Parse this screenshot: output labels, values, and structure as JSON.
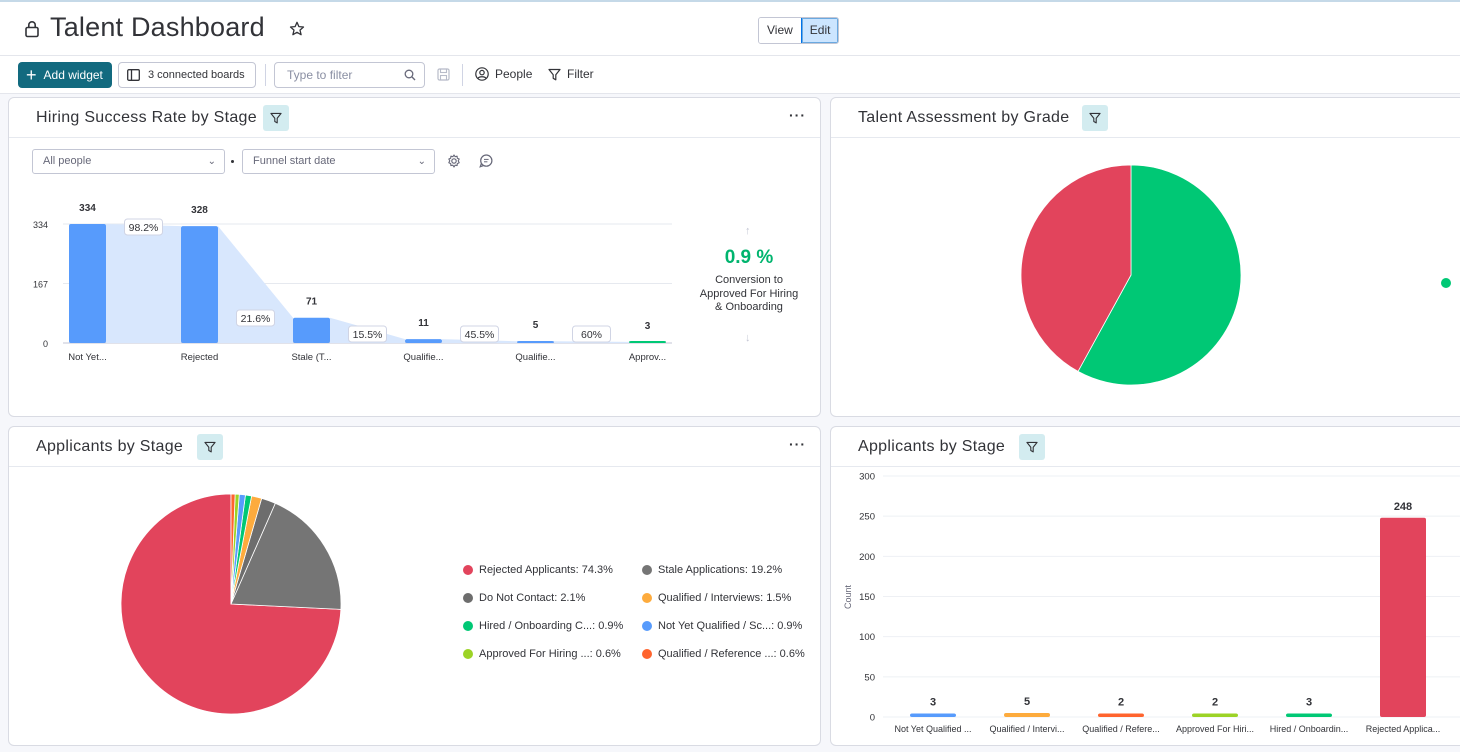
{
  "header": {
    "title": "Talent Dashboard",
    "view_label": "View",
    "edit_label": "Edit"
  },
  "toolbar": {
    "add_widget_label": "Add widget",
    "connected_boards_label": "3 connected boards",
    "filter_placeholder": "Type to filter",
    "people_label": "People",
    "filter_label": "Filter"
  },
  "widgets": {
    "funnel": {
      "title": "Hiring Success Rate by Stage",
      "people_select": "All people",
      "date_select": "Funnel start date",
      "conversion_pct": "0.9 %",
      "conversion_label": "Conversion to Approved For Hiring & Onboarding"
    },
    "grade": {
      "title": "Talent Assessment by Grade"
    },
    "stage_pie": {
      "title": "Applicants by Stage"
    },
    "stage_bar": {
      "title": "Applicants by Stage",
      "ylabel": "Count"
    }
  },
  "colors": {
    "accent": "#126a7f",
    "funnel_bar": "#579bfc",
    "funnel_area": "#d8e7fd",
    "green": "#00c875",
    "red": "#e2445c"
  },
  "chart_data": [
    {
      "type": "bar",
      "name": "funnel",
      "categories": [
        "Not Yet...",
        "Rejected",
        "Stale (T...",
        "Qualifie...",
        "Qualifie...",
        "Approv..."
      ],
      "values": [
        334,
        328,
        71,
        11,
        5,
        3
      ],
      "step_labels": [
        "98.2%",
        "21.6%",
        "15.5%",
        "45.5%",
        "60%"
      ],
      "ytick_labels": [
        "334",
        "167",
        "0"
      ],
      "ylim": [
        0,
        334
      ]
    },
    {
      "type": "pie",
      "name": "grade",
      "values": [
        58,
        42
      ],
      "colors": [
        "#00c875",
        "#e2445c"
      ]
    },
    {
      "type": "pie",
      "name": "stage_pie",
      "slices": [
        {
          "label": "Rejected Applicants",
          "pct": "74.3%",
          "value": 74.3,
          "color": "#e2445c"
        },
        {
          "label": "Stale Applications",
          "pct": "19.2%",
          "value": 19.2,
          "color": "#757575"
        },
        {
          "label": "Do Not Contact",
          "pct": "2.1%",
          "value": 2.1,
          "color": "#6d6d6d"
        },
        {
          "label": "Qualified / Interviews",
          "pct": "1.5%",
          "value": 1.5,
          "color": "#fdab3d"
        },
        {
          "label": "Hired / Onboarding C...",
          "pct": "0.9%",
          "value": 0.9,
          "color": "#00c875"
        },
        {
          "label": "Not Yet Qualified / Sc...",
          "pct": "0.9%",
          "value": 0.9,
          "color": "#579bfc"
        },
        {
          "label": "Approved For Hiring ...",
          "pct": "0.6%",
          "value": 0.6,
          "color": "#9cd326"
        },
        {
          "label": "Qualified / Reference ...",
          "pct": "0.6%",
          "value": 0.6,
          "color": "#ff642e"
        }
      ]
    },
    {
      "type": "bar",
      "name": "stage_bar",
      "categories": [
        "Not Yet Qualified ...",
        "Qualified / Intervi...",
        "Qualified / Refere...",
        "Approved For Hiri...",
        "Hired / Onboardin...",
        "Rejected Applica..."
      ],
      "values": [
        3,
        5,
        2,
        2,
        3,
        248
      ],
      "colors": [
        "#579bfc",
        "#fdab3d",
        "#ff642e",
        "#9cd326",
        "#00c875",
        "#e2445c"
      ],
      "ylabel": "Count",
      "yticks": [
        0,
        50,
        100,
        150,
        200,
        250,
        300
      ],
      "ylim": [
        0,
        300
      ]
    }
  ]
}
